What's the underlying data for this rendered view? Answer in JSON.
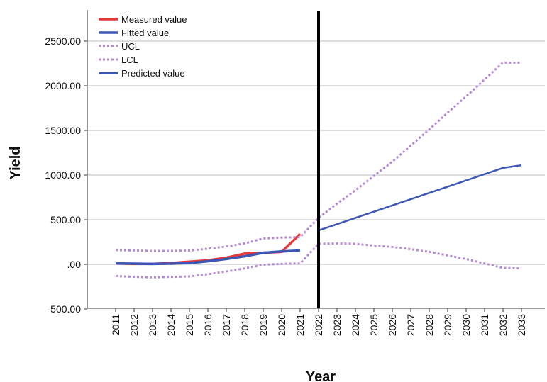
{
  "chart_data": {
    "type": "line",
    "title": "",
    "xlabel": "Year",
    "ylabel": "Yield",
    "ylim": [
      -500,
      2800
    ],
    "yticks": [
      -500,
      0,
      500,
      1000,
      1500,
      2000,
      2500
    ],
    "ytick_labels": [
      "-500.00",
      ".00",
      "500.00",
      "1000.00",
      "1500.00",
      "2000.00",
      "2500.00"
    ],
    "categories": [
      "2011",
      "2012",
      "2013",
      "2014",
      "2015",
      "2016",
      "2017",
      "2018",
      "2019",
      "2020",
      "2021",
      "2022",
      "2023",
      "2024",
      "2025",
      "2026",
      "2027",
      "2028",
      "2029",
      "2030",
      "2031",
      "2032",
      "2033"
    ],
    "grid": "horizontal",
    "legend_position": "top-left",
    "divider_year": "2022",
    "series": [
      {
        "name": "Measured value",
        "color": "#e8373a",
        "style": "solid",
        "x": [
          "2011",
          "2012",
          "2013",
          "2014",
          "2015",
          "2016",
          "2017",
          "2018",
          "2019",
          "2020",
          "2021"
        ],
        "values": [
          10,
          5,
          5,
          15,
          30,
          45,
          75,
          120,
          130,
          140,
          340
        ]
      },
      {
        "name": "Fitted value",
        "color": "#3e57b4",
        "style": "solid",
        "x": [
          "2011",
          "2012",
          "2013",
          "2014",
          "2015",
          "2016",
          "2017",
          "2018",
          "2019",
          "2020",
          "2021"
        ],
        "values": [
          10,
          8,
          5,
          8,
          15,
          35,
          60,
          90,
          130,
          145,
          155
        ]
      },
      {
        "name": "UCL",
        "color": "#b48ad6",
        "style": "dotted",
        "x": [
          "2011",
          "2012",
          "2013",
          "2014",
          "2015",
          "2016",
          "2017",
          "2018",
          "2019",
          "2020",
          "2021",
          "2022",
          "2023",
          "2024",
          "2025",
          "2026",
          "2027",
          "2028",
          "2029",
          "2030",
          "2031",
          "2032",
          "2033"
        ],
        "values": [
          160,
          155,
          150,
          150,
          155,
          175,
          200,
          235,
          290,
          300,
          305,
          520,
          680,
          830,
          990,
          1150,
          1330,
          1510,
          1700,
          1880,
          2070,
          2260,
          2255
        ]
      },
      {
        "name": "LCL",
        "color": "#b48ad6",
        "style": "dotted",
        "x": [
          "2011",
          "2012",
          "2013",
          "2014",
          "2015",
          "2016",
          "2017",
          "2018",
          "2019",
          "2020",
          "2021",
          "2022",
          "2023",
          "2024",
          "2025",
          "2026",
          "2027",
          "2028",
          "2029",
          "2030",
          "2031",
          "2032",
          "2033"
        ],
        "values": [
          -130,
          -140,
          -145,
          -140,
          -135,
          -110,
          -80,
          -45,
          -5,
          5,
          10,
          230,
          235,
          230,
          210,
          195,
          170,
          140,
          100,
          60,
          10,
          -40,
          -45
        ]
      },
      {
        "name": "Predicted value",
        "color": "#3e57b4",
        "style": "solid-thin",
        "x": [
          "2022",
          "2023",
          "2024",
          "2025",
          "2026",
          "2027",
          "2028",
          "2029",
          "2030",
          "2031",
          "2032",
          "2033"
        ],
        "values": [
          380,
          450,
          520,
          590,
          660,
          730,
          800,
          870,
          940,
          1010,
          1080,
          1110
        ]
      }
    ]
  }
}
